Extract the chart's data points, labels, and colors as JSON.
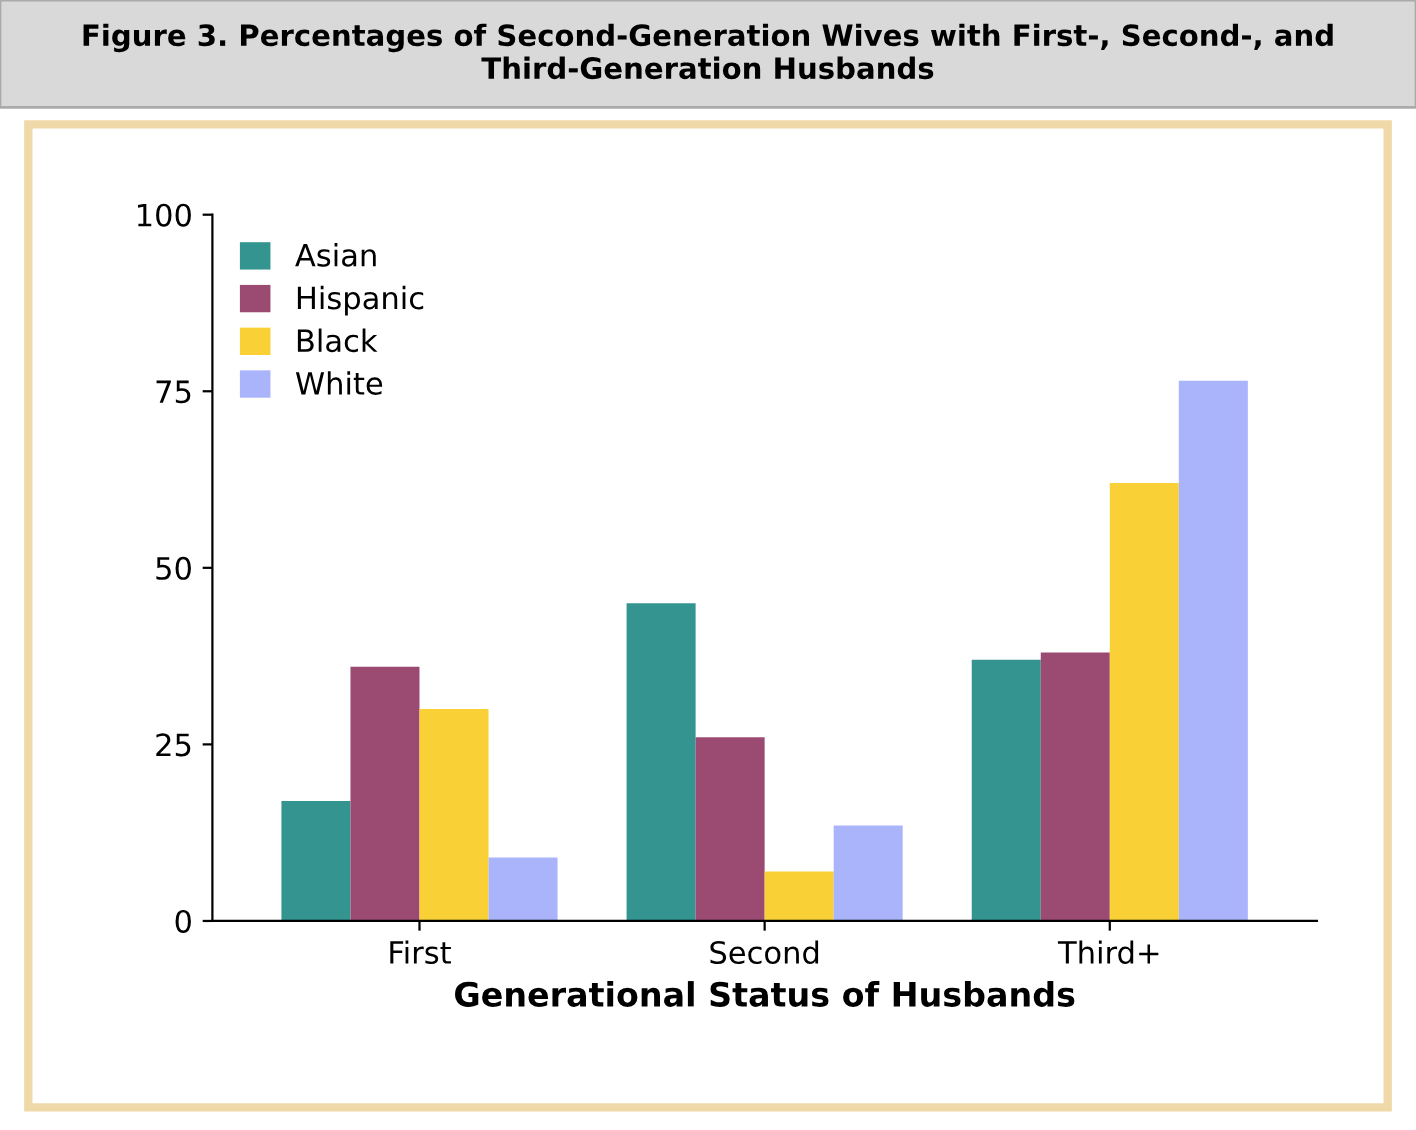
{
  "chart_data": {
    "type": "bar",
    "title": "Figure 3. Percentages of Second-Generation Wives with First-, Second-, and Third-Generation Husbands",
    "xlabel": "Generational Status of Husbands",
    "categories": [
      "First",
      "Second",
      "Third+"
    ],
    "series": [
      {
        "name": "Asian",
        "color": "#339490",
        "values": [
          17,
          45,
          37
        ]
      },
      {
        "name": "Hispanic",
        "color": "#9b4a72",
        "values": [
          36,
          26,
          38
        ]
      },
      {
        "name": "Black",
        "color": "#f9d136",
        "values": [
          30,
          7,
          62
        ]
      },
      {
        "name": "White",
        "color": "#a9b4fb",
        "values": [
          9,
          13.5,
          76.5
        ]
      }
    ],
    "ylim": [
      0,
      100
    ],
    "yticks": [
      0,
      25,
      50,
      75,
      100
    ],
    "grid": false,
    "legend": "top left"
  }
}
